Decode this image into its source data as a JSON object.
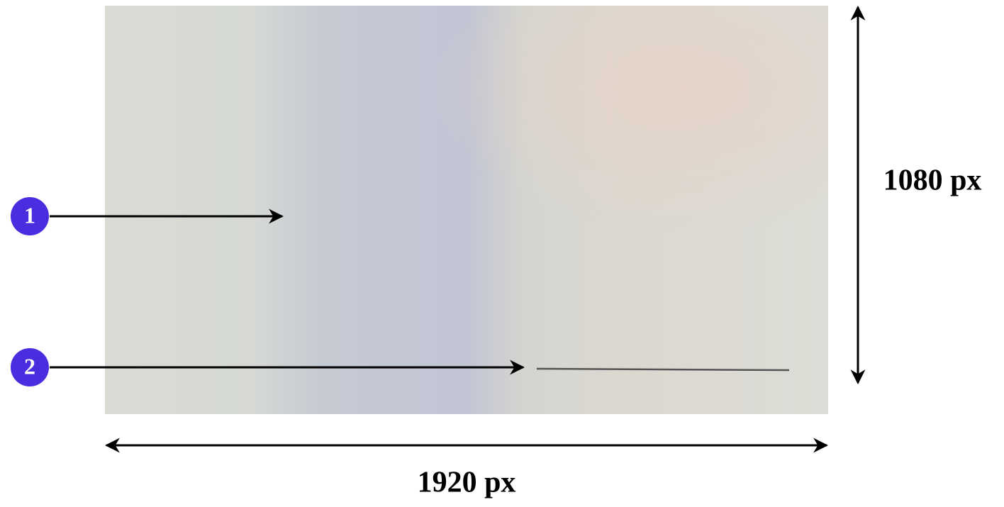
{
  "markers": [
    {
      "label": "1"
    },
    {
      "label": "2"
    }
  ],
  "dimensions": {
    "height": "1080 px",
    "width": "1920 px"
  }
}
